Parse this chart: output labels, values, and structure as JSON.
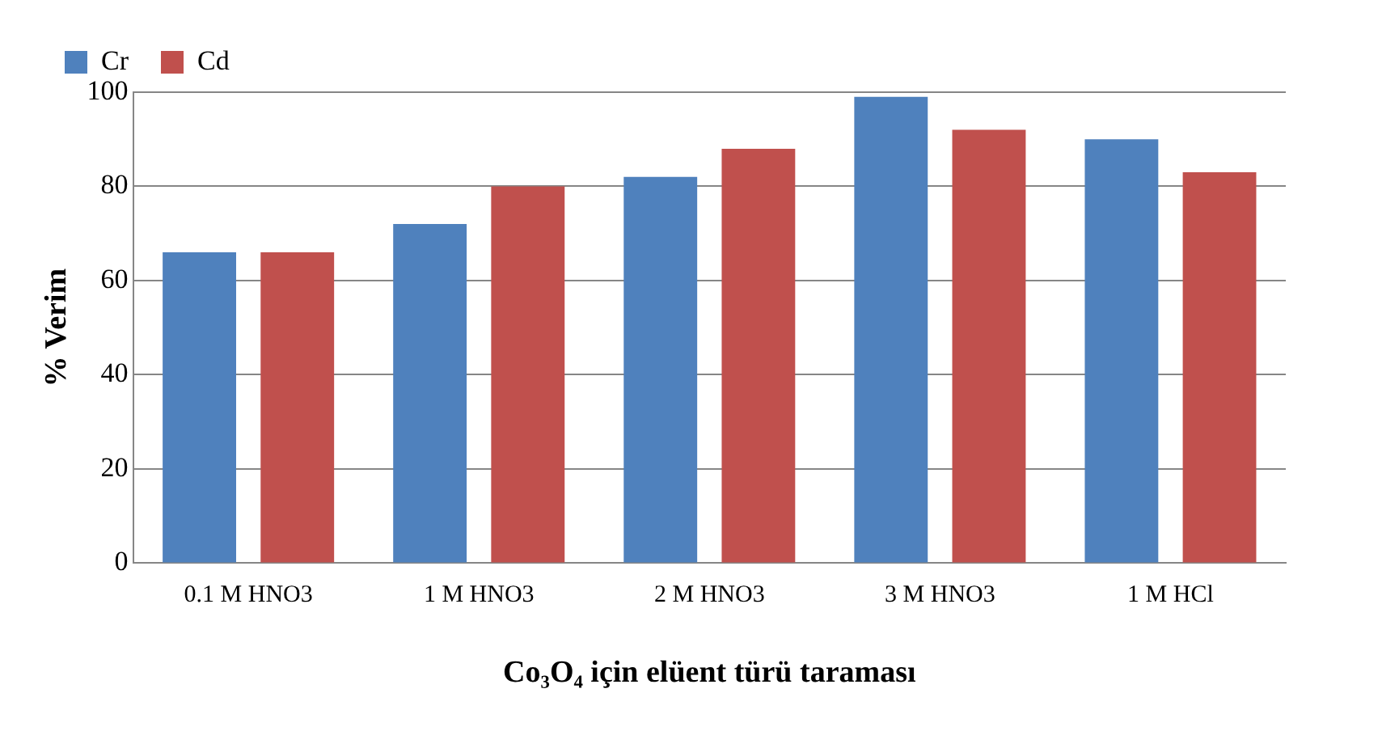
{
  "chart_data": {
    "type": "bar",
    "xlabel": "Co₃O₄ için elüent türü taraması",
    "ylabel": "% Verim",
    "categories": [
      "0.1 M HNO3",
      "1 M HNO3",
      "2 M HNO3",
      "3 M HNO3",
      "1 M HCl"
    ],
    "series": [
      {
        "name": "Cr",
        "color": "#4f81bd",
        "values": [
          66,
          72,
          82,
          99,
          90
        ]
      },
      {
        "name": "Cd",
        "color": "#c0504d",
        "values": [
          66,
          80,
          88,
          92,
          83
        ]
      }
    ],
    "ylim": [
      0,
      100
    ],
    "yticks": [
      0,
      20,
      40,
      60,
      80,
      100
    ],
    "grid": "y",
    "legend": "top left"
  }
}
